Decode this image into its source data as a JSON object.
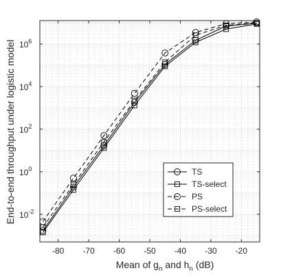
{
  "chart_data": {
    "type": "line",
    "xlabel": "Mean of g",
    "xlabel_sub1": "n",
    "xlabel_mid": " and h",
    "xlabel_sub2": "n",
    "xlabel_tail": " (dB)",
    "ylabel": "End-to-end throughput under logistic model",
    "yscale": "log",
    "xlim": [
      -86,
      -14
    ],
    "ylim_exp": [
      -3.3,
      7.1
    ],
    "xticks": [
      -80,
      -70,
      -60,
      -50,
      -40,
      -30,
      -20
    ],
    "xtick_labels": [
      "-80",
      "-70",
      "-60",
      "-50",
      "-40",
      "-30",
      "-20"
    ],
    "yticks_exp": [
      -2,
      0,
      2,
      4,
      6
    ],
    "ytick_labels": [
      "10",
      "10",
      "10",
      "10",
      "10"
    ],
    "ytick_sup": [
      "-2",
      "0",
      "2",
      "4",
      "6"
    ],
    "grid": true,
    "legend_position": "bottom-right",
    "x": [
      -85,
      -75,
      -65,
      -55,
      -45,
      -35,
      -25,
      -15
    ],
    "series": [
      {
        "name": "TS",
        "marker": "circle",
        "dash": "solid",
        "values": [
          0.0017,
          0.19,
          17,
          1800,
          110000,
          1500000,
          7000000,
          9500000
        ]
      },
      {
        "name": "TS-select",
        "marker": "square",
        "dash": "solid",
        "values": [
          0.0014,
          0.14,
          13,
          1300,
          90000,
          1200000,
          5000000,
          8800000
        ]
      },
      {
        "name": "PS",
        "marker": "circle",
        "dash": "dashed",
        "values": [
          0.0045,
          0.5,
          50,
          4800,
          380000,
          3500000,
          9000000,
          11000000
        ]
      },
      {
        "name": "PS-select",
        "marker": "square",
        "dash": "dashed",
        "values": [
          0.0025,
          0.25,
          25,
          2200,
          140000,
          2600000,
          7500000,
          10000000
        ]
      }
    ],
    "colors": {
      "line": "#000000",
      "grid_major": "#c8c8c8",
      "grid_minor": "#e2e2e2",
      "axis": "#262626"
    }
  }
}
